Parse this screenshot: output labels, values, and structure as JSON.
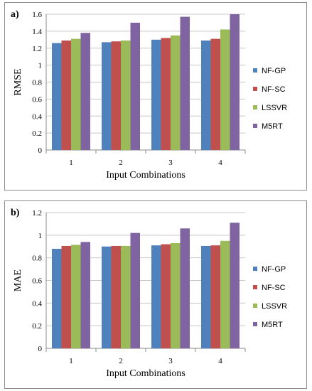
{
  "chart_data": [
    {
      "type": "bar",
      "panel_label": "a)",
      "categories": [
        "1",
        "2",
        "3",
        "4"
      ],
      "series": [
        {
          "name": "NF-GP",
          "values": [
            1.26,
            1.27,
            1.3,
            1.29
          ]
        },
        {
          "name": "NF-SC",
          "values": [
            1.29,
            1.28,
            1.32,
            1.31
          ]
        },
        {
          "name": "LSSVR",
          "values": [
            1.31,
            1.29,
            1.35,
            1.42
          ]
        },
        {
          "name": "M5RT",
          "values": [
            1.38,
            1.5,
            1.57,
            1.6
          ]
        }
      ],
      "xlabel": "Input Combinations",
      "ylabel": "RMSE",
      "ylim": [
        0,
        1.6
      ],
      "yticks": [
        "0",
        "0.2",
        "0.4",
        "0.6",
        "0.8",
        "1",
        "1.2",
        "1.4",
        "1.6"
      ],
      "ytick_values": [
        0,
        0.2,
        0.4,
        0.6,
        0.8,
        1.0,
        1.2,
        1.4,
        1.6
      ],
      "grid": "horizontal",
      "legend": "right"
    },
    {
      "type": "bar",
      "panel_label": "b)",
      "categories": [
        "1",
        "2",
        "3",
        "4"
      ],
      "series": [
        {
          "name": "NF-GP",
          "values": [
            0.88,
            0.9,
            0.91,
            0.905
          ]
        },
        {
          "name": "NF-SC",
          "values": [
            0.905,
            0.905,
            0.92,
            0.91
          ]
        },
        {
          "name": "LSSVR",
          "values": [
            0.915,
            0.905,
            0.93,
            0.95
          ]
        },
        {
          "name": "M5RT",
          "values": [
            0.94,
            1.02,
            1.06,
            1.11
          ]
        }
      ],
      "xlabel": "Input Combinations",
      "ylabel": "MAE",
      "ylim": [
        0,
        1.2
      ],
      "yticks": [
        "0",
        "0.2",
        "0.4",
        "0.6",
        "0.8",
        "1",
        "1.2"
      ],
      "ytick_values": [
        0,
        0.2,
        0.4,
        0.6,
        0.8,
        1.0,
        1.2
      ],
      "grid": "horizontal",
      "legend": "right"
    }
  ],
  "colors": {
    "NF-GP": "#4F81BD",
    "NF-SC": "#C0504D",
    "LSSVR": "#9BBB59",
    "M5RT": "#8064A2"
  }
}
